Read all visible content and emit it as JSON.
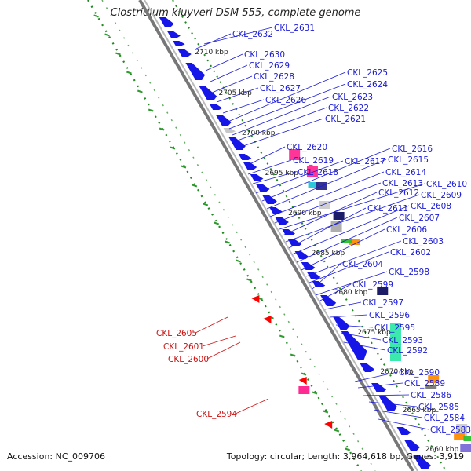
{
  "title": "Clostridium kluyveri DSM 555, complete genome",
  "footer": {
    "accession": "Accession: NC_009706",
    "summary": "Topology: circular; Length: 3,964,618 bp; Genes: 3,919"
  },
  "colors": {
    "forward_label": "#1a1ad6",
    "reverse_label": "#cc1111",
    "forward_gene": "#1616e8",
    "backbone": "#777777",
    "dotted_track": "#1f8a1f",
    "tick_mark": "#2e9a2e"
  },
  "ruler": [
    {
      "label": "2710 kbp"
    },
    {
      "label": "2705 kbp"
    },
    {
      "label": "2700 kbp"
    },
    {
      "label": "2695 kbp"
    },
    {
      "label": "2690 kbp"
    },
    {
      "label": "2685 kbp"
    },
    {
      "label": "2680 kbp"
    },
    {
      "label": "2675 kbp"
    },
    {
      "label": "2670 kbp"
    },
    {
      "label": "2665 kbp"
    },
    {
      "label": "2660 kbp"
    }
  ],
  "forward_genes": [
    "CKL_2631",
    "CKL_2632",
    "CKL_2630",
    "CKL_2629",
    "CKL_2628",
    "CKL_2627",
    "CKL_2626",
    "CKL_2625",
    "CKL_2624",
    "CKL_2623",
    "CKL_2622",
    "CKL_2621",
    "CKL_2620",
    "CKL_2619",
    "CKL_2618",
    "CKL_2617",
    "CKL_2616",
    "CKL_2615",
    "CKL_2614",
    "CKL_2613",
    "CKL_2610",
    "CKL_2612",
    "CKL_2609",
    "CKL_2611",
    "CKL_2608",
    "CKL_2607",
    "CKL_2606",
    "CKL_2603",
    "CKL_2602",
    "CKL_2604",
    "CKL_2598",
    "CKL_2599",
    "CKL_2597",
    "CKL_2596",
    "CKL_2595",
    "CKL_2593",
    "CKL_2592",
    "CKL_2590",
    "CKL_2589",
    "CKL_2586",
    "CKL_2585",
    "CKL_2584",
    "CKL_2583"
  ],
  "reverse_genes": [
    "CKL_2605",
    "CKL_2601",
    "CKL_2600",
    "CKL_2594"
  ]
}
